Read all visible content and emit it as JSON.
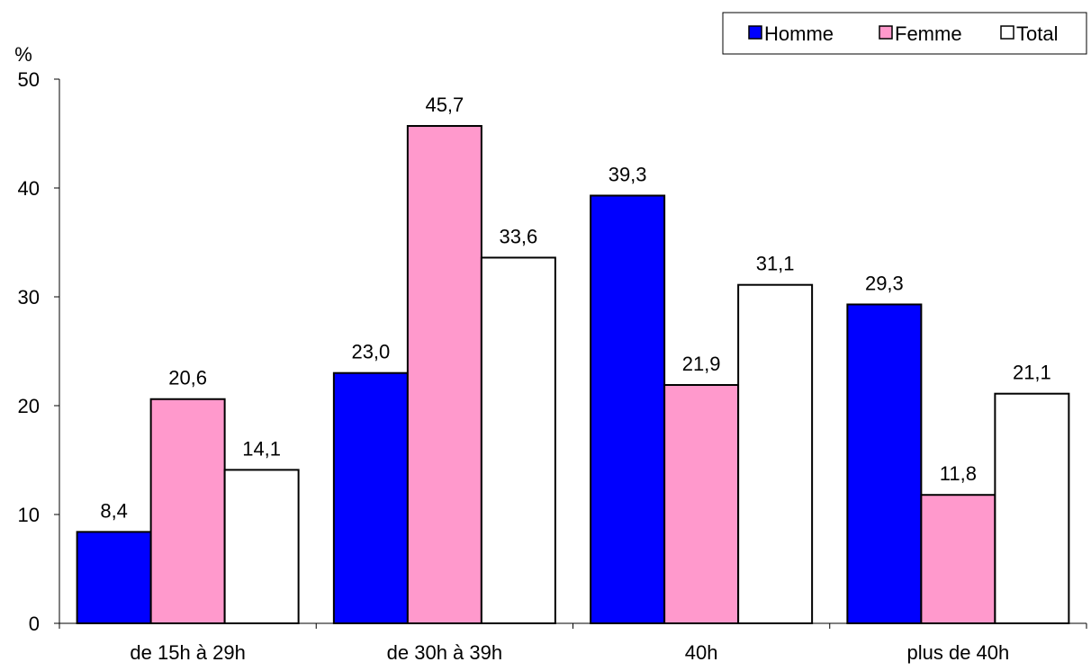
{
  "chart_data": {
    "type": "bar",
    "ylabel": "%",
    "ylim": [
      0,
      50
    ],
    "yticks": [
      0,
      10,
      20,
      30,
      40,
      50
    ],
    "grid": false,
    "legend_position": "top-right",
    "categories": [
      "de 15h à 29h",
      "de 30h à 39h",
      "40h",
      "plus de 40h"
    ],
    "series": [
      {
        "name": "Homme",
        "color": "#0000ff",
        "values": [
          8.4,
          23.0,
          39.3,
          29.3
        ],
        "labels": [
          "8,4",
          "23,0",
          "39,3",
          "29,3"
        ]
      },
      {
        "name": "Femme",
        "color": "#ff99cc",
        "values": [
          20.6,
          45.7,
          21.9,
          11.8
        ],
        "labels": [
          "20,6",
          "45,7",
          "21,9",
          "11,8"
        ]
      },
      {
        "name": "Total",
        "color": "#ffffff",
        "values": [
          14.1,
          33.6,
          31.1,
          21.1
        ],
        "labels": [
          "14,1",
          "33,6",
          "31,1",
          "21,1"
        ]
      }
    ]
  }
}
